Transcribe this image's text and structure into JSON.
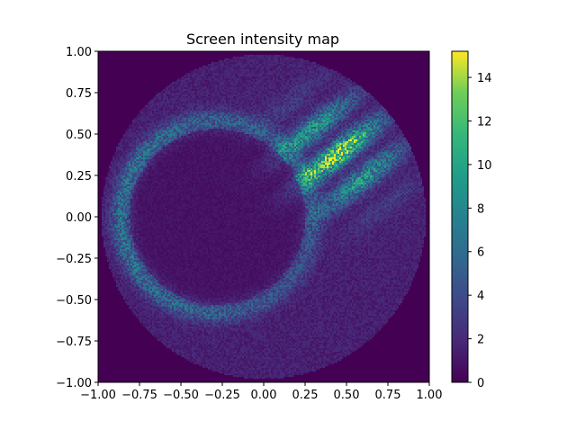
{
  "chart_data": {
    "type": "heatmap",
    "title": "Screen intensity map",
    "xlabel": "",
    "ylabel": "",
    "xlim": [
      -1.0,
      1.0
    ],
    "ylim": [
      -1.0,
      1.0
    ],
    "x_ticks": [
      -1.0,
      -0.75,
      -0.5,
      -0.25,
      0.0,
      0.25,
      0.5,
      0.75,
      1.0
    ],
    "x_tick_labels": [
      "−1.00",
      "−0.75",
      "−0.50",
      "−0.25",
      "0.00",
      "0.25",
      "0.50",
      "0.75",
      "1.00"
    ],
    "y_ticks": [
      1.0,
      0.75,
      0.5,
      0.25,
      0.0,
      -0.25,
      -0.5,
      -0.75,
      -1.0
    ],
    "y_tick_labels": [
      "1.00",
      "0.75",
      "0.50",
      "0.25",
      "0.00",
      "−0.25",
      "−0.50",
      "−0.75",
      "−1.00"
    ],
    "colorbar": {
      "min": 0,
      "max": 15.2,
      "ticks": [
        0,
        2,
        4,
        6,
        8,
        10,
        12,
        14
      ],
      "tick_labels": [
        "0",
        "2",
        "4",
        "6",
        "8",
        "10",
        "12",
        "14"
      ],
      "colormap": "viridis"
    },
    "grid": false,
    "description_features": {
      "disk_radius": 0.98,
      "ring_center": [
        -0.28,
        0.0
      ],
      "ring_radius": 0.58,
      "ring_peak_intensity": 4.5,
      "hotspot_center": [
        0.45,
        0.38
      ],
      "hotspot_peak_intensity": 12,
      "background_disk_intensity": 1.5
    }
  }
}
